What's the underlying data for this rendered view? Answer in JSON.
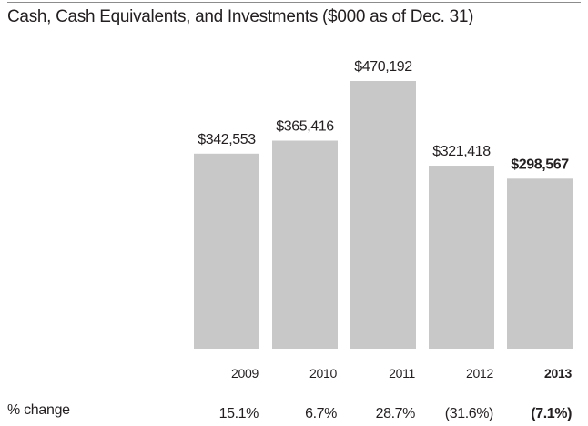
{
  "chart_data": {
    "type": "bar",
    "title": "Cash, Cash Equivalents, and Investments ($000 as of Dec. 31)",
    "categories": [
      "2009",
      "2010",
      "2011",
      "2012",
      "2013"
    ],
    "values": [
      342553,
      365416,
      470192,
      321418,
      298567
    ],
    "value_labels": [
      "$342,553",
      "$365,416",
      "$470,192",
      "$321,418",
      "$298,567"
    ],
    "highlight_index": 4,
    "bar_color": "#c8c8c8",
    "ylim": [
      0,
      470192
    ],
    "grid": false,
    "change_row": {
      "label": "% change",
      "values": [
        "15.1%",
        "6.7%",
        "28.7%",
        "(31.6%)",
        "(7.1%)"
      ]
    }
  }
}
